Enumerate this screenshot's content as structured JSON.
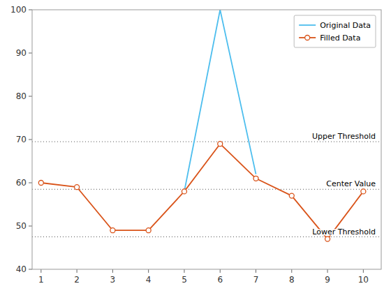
{
  "chart_data": {
    "type": "line",
    "series": [
      {
        "name": "Original Data",
        "color": "#4DBEEE",
        "x": [
          5,
          6,
          7
        ],
        "values": [
          58,
          100,
          62
        ]
      },
      {
        "name": "Filled Data",
        "color": "#D95319",
        "marker": "circle",
        "x": [
          1,
          2,
          3,
          4,
          5,
          6,
          7,
          8,
          9,
          10
        ],
        "values": [
          60,
          59,
          49,
          49,
          58,
          69,
          61,
          57,
          47,
          58
        ]
      }
    ],
    "annotations": [
      {
        "text": "Upper Threshold",
        "y": 69.5,
        "color": "#555555",
        "line_style": "dotted"
      },
      {
        "text": "Center Value",
        "y": 58.5,
        "color": "#555555",
        "line_style": "dotted"
      },
      {
        "text": "Lower Threshold",
        "y": 47.5,
        "color": "#555555",
        "line_style": "dotted"
      }
    ],
    "xlim": [
      0.75,
      10.5
    ],
    "ylim": [
      40,
      100
    ],
    "xticks": [
      1,
      2,
      3,
      4,
      5,
      6,
      7,
      8,
      9,
      10
    ],
    "yticks": [
      40,
      50,
      60,
      70,
      80,
      90,
      100
    ],
    "legend": "upper right",
    "grid": false
  }
}
